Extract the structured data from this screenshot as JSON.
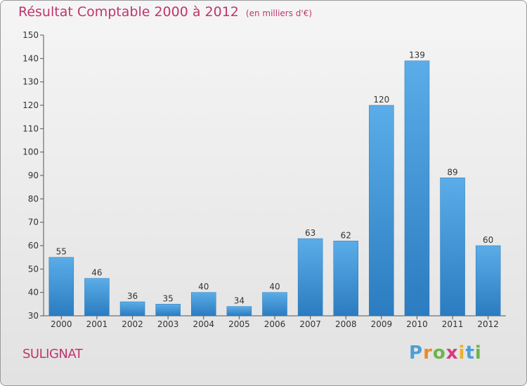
{
  "chart_data": {
    "type": "bar",
    "title": "Résultat Comptable 2000 à 2012",
    "subtitle": "(en milliers d'€)",
    "categories": [
      "2000",
      "2001",
      "2002",
      "2003",
      "2004",
      "2005",
      "2006",
      "2007",
      "2008",
      "2009",
      "2010",
      "2011",
      "2012"
    ],
    "values": [
      55,
      46,
      36,
      35,
      40,
      34,
      40,
      63,
      62,
      120,
      139,
      89,
      60
    ],
    "ylim": [
      30,
      150
    ],
    "yticks": [
      30,
      40,
      50,
      60,
      70,
      80,
      90,
      100,
      110,
      120,
      130,
      140,
      150
    ],
    "grid": false,
    "bar_color": "#3d94d6"
  },
  "commune": "SULIGNAT",
  "logo": {
    "letters": [
      "P",
      "r",
      "o",
      "x",
      "i",
      "t",
      "i"
    ],
    "colors": [
      "#4a9fd8",
      "#e98a2c",
      "#6bb54a",
      "#d63a7c",
      "#e9b22c",
      "#4a9fd8",
      "#6bb54a"
    ]
  }
}
